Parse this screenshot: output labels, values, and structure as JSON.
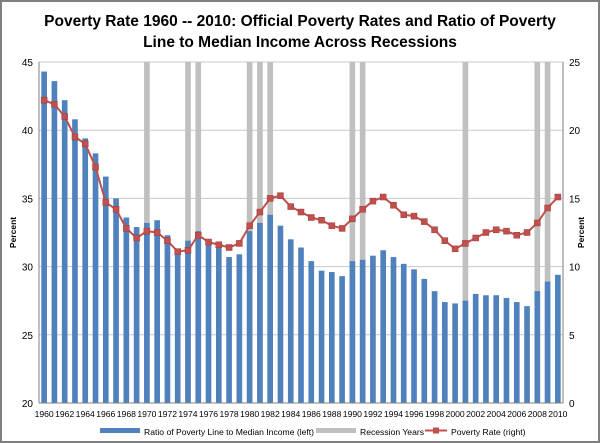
{
  "chart_data": {
    "type": "bar+line",
    "title_line1": "Poverty Rate 1960 -- 2010: Official Poverty Rates and Ratio of Poverty",
    "title_line2": "Line to Median Income Across Recessions",
    "ylabel_left": "Percent",
    "ylabel_right": "Percent",
    "ylim_left": [
      20,
      45
    ],
    "ylim_right": [
      0,
      25
    ],
    "yticks_left": [
      20,
      25,
      30,
      35,
      40,
      45
    ],
    "yticks_right": [
      0,
      5,
      10,
      15,
      20,
      25
    ],
    "x_years": [
      1960,
      1961,
      1962,
      1963,
      1964,
      1965,
      1966,
      1967,
      1968,
      1969,
      1970,
      1971,
      1972,
      1973,
      1974,
      1975,
      1976,
      1977,
      1978,
      1979,
      1980,
      1981,
      1982,
      1983,
      1984,
      1985,
      1986,
      1987,
      1988,
      1989,
      1990,
      1991,
      1992,
      1993,
      1994,
      1995,
      1996,
      1997,
      1998,
      1999,
      2000,
      2001,
      2002,
      2003,
      2004,
      2005,
      2006,
      2007,
      2008,
      2009,
      2010
    ],
    "x_tick_labels": [
      "1960",
      "1962",
      "1964",
      "1966",
      "1968",
      "1970",
      "1972",
      "1974",
      "1976",
      "1978",
      "1980",
      "1982",
      "1984",
      "1986",
      "1988",
      "1990",
      "1992",
      "1994",
      "1996",
      "1998",
      "2000",
      "2002",
      "2004",
      "2006",
      "2008",
      "2010"
    ],
    "recession_years": [
      1970,
      1974,
      1975,
      1980,
      1981,
      1982,
      1990,
      1991,
      2001,
      2008,
      2009
    ],
    "series": [
      {
        "name": "Ratio of Poverty Line to Median Income (left)",
        "type": "bar",
        "axis": "left",
        "color": "#4f81bd",
        "values": [
          44.3,
          43.6,
          42.2,
          40.8,
          39.4,
          38.3,
          36.6,
          35.0,
          33.6,
          32.9,
          33.2,
          33.4,
          32.3,
          31.3,
          31.9,
          32.6,
          32.0,
          31.6,
          30.7,
          30.9,
          32.6,
          33.2,
          33.8,
          33.0,
          32.0,
          31.4,
          30.4,
          29.7,
          29.6,
          29.3,
          30.4,
          30.5,
          30.8,
          31.2,
          30.7,
          30.2,
          29.8,
          29.1,
          28.2,
          27.4,
          27.3,
          27.5,
          28.0,
          27.9,
          27.9,
          27.7,
          27.4,
          27.1,
          28.2,
          28.9,
          29.4
        ]
      },
      {
        "name": "Recession Years",
        "type": "band",
        "axis": "left",
        "color": "#c0c0c0"
      },
      {
        "name": "Poverty Rate (right)",
        "type": "line",
        "axis": "right",
        "color": "#c0504d",
        "values": [
          22.2,
          21.9,
          21.0,
          19.5,
          19.0,
          17.3,
          14.7,
          14.2,
          12.8,
          12.1,
          12.6,
          12.5,
          11.9,
          11.1,
          11.2,
          12.3,
          11.8,
          11.6,
          11.4,
          11.7,
          13.0,
          14.0,
          15.0,
          15.2,
          14.4,
          14.0,
          13.6,
          13.4,
          13.0,
          12.8,
          13.5,
          14.2,
          14.8,
          15.1,
          14.5,
          13.8,
          13.7,
          13.3,
          12.7,
          11.9,
          11.3,
          11.7,
          12.1,
          12.5,
          12.7,
          12.6,
          12.3,
          12.5,
          13.2,
          14.3,
          15.1
        ]
      }
    ],
    "legend_position": "bottom",
    "grid": "horizontal"
  }
}
